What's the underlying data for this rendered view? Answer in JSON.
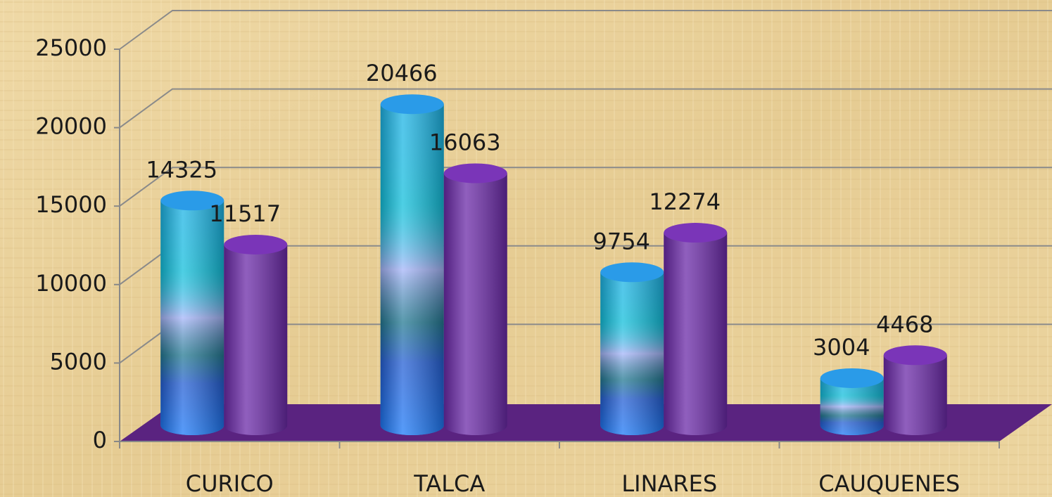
{
  "chart_data": {
    "type": "bar3d",
    "categories": [
      "CURICO",
      "TALCA",
      "LINARES",
      "CAUQUENES"
    ],
    "series": [
      {
        "color": "#1ab8e0",
        "values": [
          14325,
          20466,
          9754,
          3004
        ]
      },
      {
        "color": "#6b2aa8",
        "values": [
          11517,
          16063,
          12274,
          4468
        ]
      }
    ],
    "ylim": [
      0,
      25000
    ],
    "yticks": [
      0,
      5000,
      10000,
      15000,
      20000,
      25000
    ],
    "grid": true
  }
}
